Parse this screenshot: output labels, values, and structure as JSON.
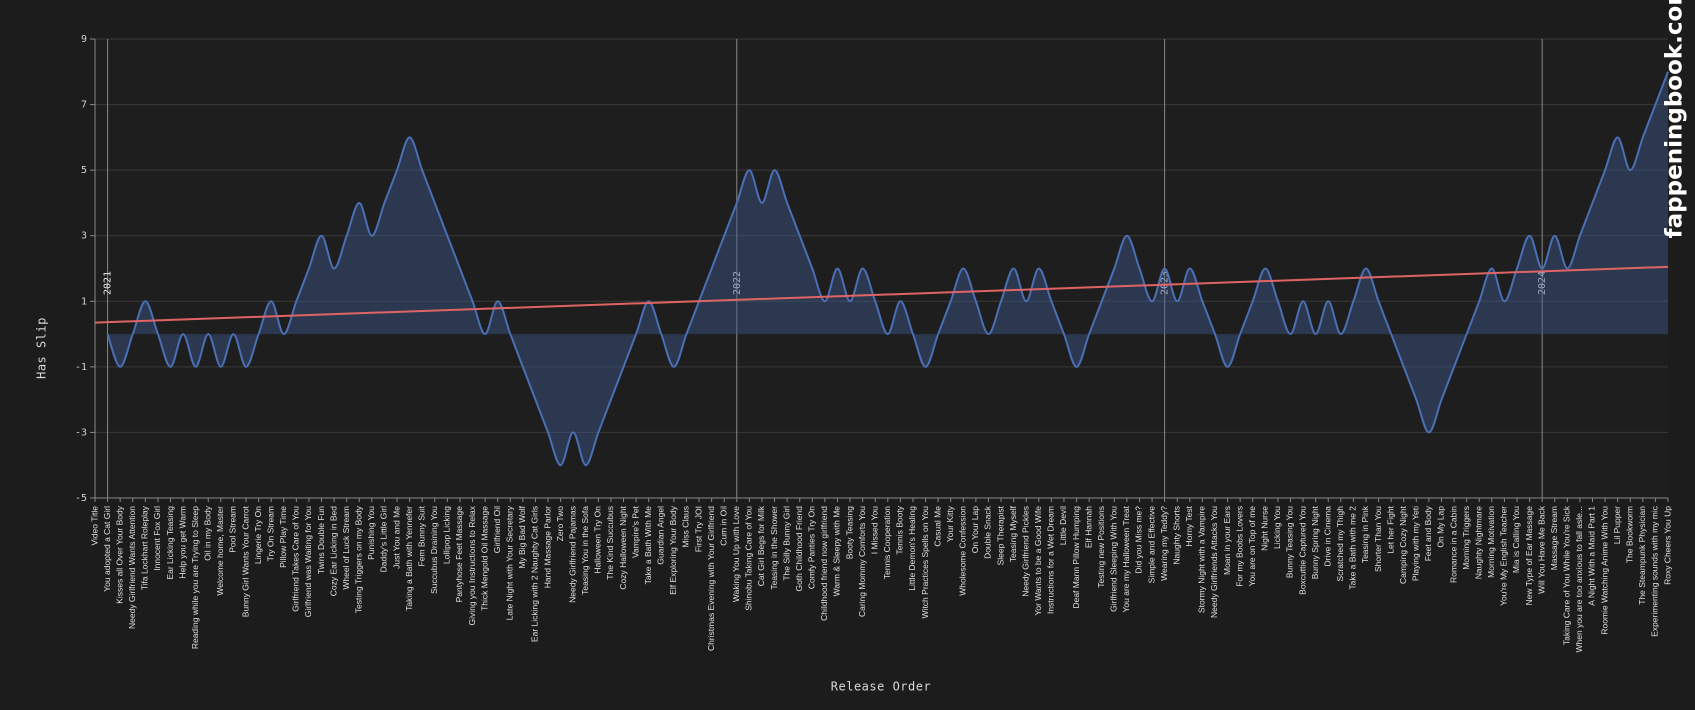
{
  "chart_data": {
    "type": "area",
    "x_label": "Release Order",
    "y_label": "Has Slip",
    "watermark": "fappeningbook.com",
    "categories": [
      "Video Title",
      "You adopted a Cat Girl",
      "Kisses all Over Your Body",
      "Needy Girlfriend Wants Attention",
      "Tifa Lockhart Roleplay",
      "Innocent Fox Girl",
      "Ear Licking Teasing",
      "Help you get Warm",
      "Reading while you are Trying to Sleep",
      "Oil in my Body",
      "Welcome home, Master",
      "Pool Stream",
      "Bunny Girl Wants Your Carrot",
      "Lingerie Try On",
      "Try On Stream",
      "Pillow Play Time",
      "Girlfriend Takes Care of You",
      "Girlfriend was Waiting for You",
      "Twins Double Fun",
      "Cozy Ear Licking in Bed",
      "Wheel of Luck Stream",
      "Testing Triggers on my Body",
      "Punishing You",
      "Daddy's Little Girl",
      "Just You and Me",
      "Taking a Bath with Yennefer",
      "Fem Bunny Suit",
      "Succubus Draining You",
      "Lollipop Licking",
      "Pantyhose Feet Massage",
      "Giving you Instructions to Relax",
      "Thick Mengold Oil Massage",
      "Girlfriend Oil",
      "Late Night with Your Secretary",
      "My Big Bad Wolf",
      "Ear Licking with 2 Naughty Cat Girls",
      "Hand Massage Parlor",
      "Zero Two",
      "Needy Girlfriend Pajamas",
      "Teasing You in the Sofa",
      "Halloween Try On",
      "The Kind Succubus",
      "Cozy Halloween Night",
      "Vampire's Pet",
      "Take a Bath With Me",
      "Guardian Angel",
      "Elf Exploring Your Body",
      "Miss Claus",
      "First Try JOI",
      "Christmas Evening with Your Girlfriend",
      "Cum in Oil",
      "Waking You Up with Love",
      "Shinobu Taking Care of You",
      "Cat Girl Begs for Milk",
      "Teasing in the Shower",
      "The Silly Bunny Girl",
      "Goth Childhood Friend",
      "Comfy Panties Try On",
      "Childhood friend now girlfriend",
      "Warm & Sleepy with Me",
      "Booty Teasing",
      "Caring Mommy Comforts You",
      "I Missed You",
      "Tennis Cooperation",
      "Tennis Booty",
      "Little Demon's Healing",
      "Witch Practices Spells on You",
      "Casual Me",
      "Your Kitty",
      "Wholesome Confession",
      "On Your Lap",
      "Double Snack",
      "Sleep Therapist",
      "Teasing Myself",
      "Needy Girlfriend Pickles",
      "Yor Wants to be a Good Wife",
      "Instructions for a Wet Dream",
      "Little Devil",
      "Deaf Mann Pillow Humping",
      "Elf Hannah",
      "Testing new Positions",
      "Girlfriend Sleeping With You",
      "You are my Halloween Treat",
      "Did you Miss me?",
      "Simple and Effective",
      "Wearing my Teddy?",
      "Naughty Shorts",
      "Horny Test",
      "Stormy Night with a Vampire",
      "Needy Girlfriends Attacks You",
      "Moan in your Ears",
      "For my Boobs Lovers",
      "You are on Top of me",
      "Night Nurse",
      "Licking You",
      "Bunny Teasing You",
      "Boxcuttie Captured You",
      "Bunny Spring Night",
      "Drive in Cinema",
      "Scratched my Thigh",
      "Take a Bath with me 2",
      "Teasing in Pink",
      "Shorter Than You",
      "Let her Fight",
      "Camping Cozy Night",
      "Playing with my Yeti",
      "Feet and Body",
      "On My Lap",
      "Romance in a Cabin",
      "Morning Triggers",
      "Naughty Nightmare",
      "Morning Motivation",
      "You're My English Teacher",
      "Mia is Calling You",
      "New Type of Ear Massage",
      "Will You Have Me Back",
      "Massage Stream",
      "Taking Care of You While You're Sick",
      "When you are too anxious to fall asle...",
      "A Night With a Maid Part 1",
      "Roomie Watching Anime With You",
      "Lil Pupper",
      "The Bookworm",
      "The Steampunk Physician",
      "Experimenting sounds with my mic",
      "Roxy Cheers You Up"
    ],
    "series": [
      {
        "name": "Has Slip",
        "color": "#4a6fb5",
        "fill": "rgba(62,88,140,0.45)",
        "values": [
          null,
          0,
          -1,
          0,
          1,
          0,
          -1,
          0,
          -1,
          0,
          -1,
          0,
          -1,
          0,
          1,
          0,
          1,
          2,
          3,
          2,
          3,
          4,
          3,
          4,
          5,
          6,
          5,
          4,
          3,
          2,
          1,
          0,
          1,
          0,
          -1,
          -2,
          -3,
          -4,
          -3,
          -4,
          -3,
          -2,
          -1,
          0,
          1,
          0,
          -1,
          0,
          1,
          2,
          3,
          4,
          5,
          4,
          5,
          4,
          3,
          2,
          1,
          2,
          1,
          2,
          1,
          0,
          1,
          0,
          -1,
          0,
          1,
          2,
          1,
          0,
          1,
          2,
          1,
          2,
          1,
          0,
          -1,
          0,
          1,
          2,
          3,
          2,
          1,
          2,
          1,
          2,
          1,
          0,
          -1,
          0,
          1,
          2,
          1,
          0,
          1,
          0,
          1,
          0,
          1,
          2,
          1,
          0,
          -1,
          -2,
          -3,
          -2,
          -1,
          0,
          1,
          2,
          1,
          2,
          3,
          2,
          3,
          2,
          3,
          4,
          5,
          6,
          5,
          6,
          7,
          8
        ]
      }
    ],
    "trend_line": {
      "color": "#e06464",
      "values": [
        0.35,
        2.05
      ]
    },
    "year_markers": [
      {
        "label": "2021",
        "at": "You adopted a Cat Girl"
      },
      {
        "label": "2022",
        "at": "Waking You Up with Love"
      },
      {
        "label": "2023",
        "at": "Wearing my Teddy?"
      },
      {
        "label": "2024",
        "at": "Will You Have Me Back"
      }
    ],
    "ylim": [
      -5,
      9
    ],
    "yticks": [
      -5,
      -3,
      -1,
      1,
      3,
      5,
      7,
      9
    ],
    "grid": true
  }
}
